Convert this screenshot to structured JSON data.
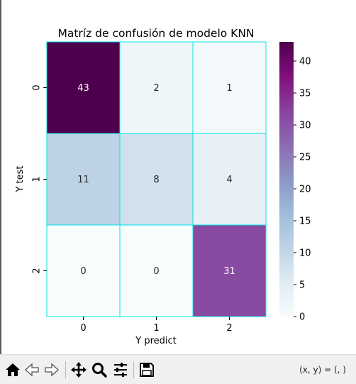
{
  "chart_data": {
    "type": "heatmap",
    "title": "Matríz de confusión de modelo KNN",
    "xlabel": "Y predict",
    "ylabel": "Y test",
    "x_categories": [
      "0",
      "1",
      "2"
    ],
    "y_categories": [
      "0",
      "1",
      "2"
    ],
    "values": [
      [
        43,
        2,
        1
      ],
      [
        11,
        8,
        4
      ],
      [
        0,
        0,
        31
      ]
    ],
    "colormap": "BuPu",
    "vmin": 0,
    "vmax": 43,
    "grid_line_color": "#00e5e5",
    "colorbar_ticks": [
      0,
      5,
      10,
      15,
      20,
      25,
      30,
      35,
      40
    ]
  },
  "toolbar": {
    "buttons": [
      {
        "name": "home-icon",
        "label": "Home"
      },
      {
        "name": "back-icon",
        "label": "Back"
      },
      {
        "name": "forward-icon",
        "label": "Forward"
      },
      {
        "name": "pan-icon",
        "label": "Pan"
      },
      {
        "name": "zoom-icon",
        "label": "Zoom"
      },
      {
        "name": "configure-subplots-icon",
        "label": "Configure subplots"
      },
      {
        "name": "save-icon",
        "label": "Save"
      }
    ],
    "coord_prefix": "(x, y) = ",
    "coord_value": "(, )"
  }
}
